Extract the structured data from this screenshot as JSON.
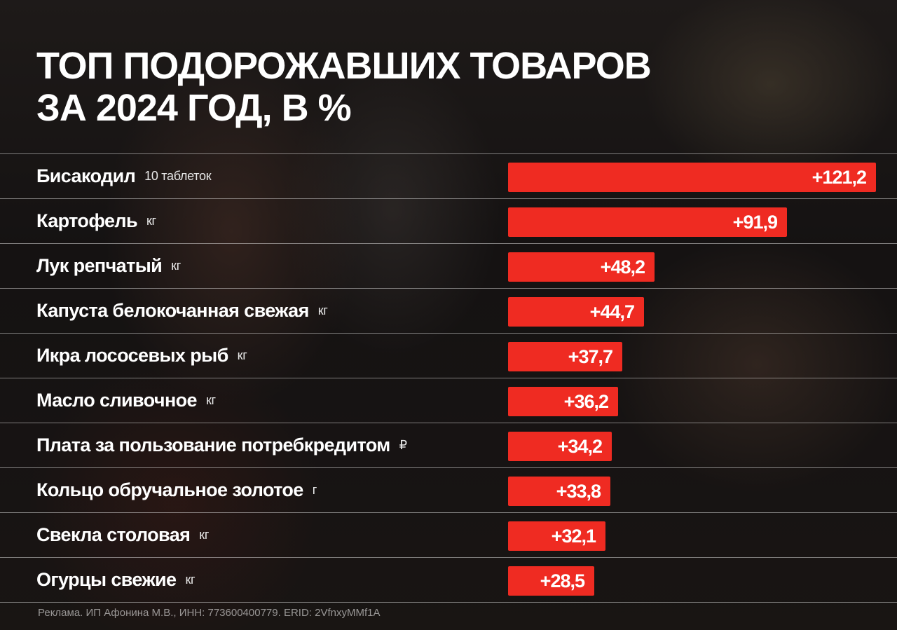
{
  "title": {
    "line1": "ТОП ПОДОРОЖАВШИХ ТОВАРОВ",
    "line2": "ЗА 2024 ГОД, В %"
  },
  "footnote": "Реклама. ИП Афонина М.В., ИНН: 773600400779. ERID: 2VfnxyMMf1A",
  "colors": {
    "bar": "#ef2b22",
    "background": "#161414",
    "text": "#ffffff"
  },
  "chart_data": {
    "type": "bar",
    "orientation": "horizontal",
    "title": "ТОП ПОДОРОЖАВШИХ ТОВАРОВ ЗА 2024 ГОД, В %",
    "xmax": 121.2,
    "rows": [
      {
        "name": "Бисакодил",
        "unit": "10 таблеток",
        "value": 121.2,
        "label": "+121,2"
      },
      {
        "name": "Картофель",
        "unit": "кг",
        "value": 91.9,
        "label": "+91,9"
      },
      {
        "name": "Лук репчатый",
        "unit": "кг",
        "value": 48.2,
        "label": "+48,2"
      },
      {
        "name": "Капуста белокочанная свежая",
        "unit": "кг",
        "value": 44.7,
        "label": "+44,7"
      },
      {
        "name": "Икра лососевых рыб",
        "unit": "кг",
        "value": 37.7,
        "label": "+37,7"
      },
      {
        "name": "Масло сливочное",
        "unit": "кг",
        "value": 36.2,
        "label": "+36,2"
      },
      {
        "name": "Плата за пользование потребкредитом",
        "unit": "₽",
        "value": 34.2,
        "label": "+34,2"
      },
      {
        "name": "Кольцо обручальное золотое",
        "unit": "г",
        "value": 33.8,
        "label": "+33,8"
      },
      {
        "name": "Свекла столовая",
        "unit": "кг",
        "value": 32.1,
        "label": "+32,1"
      },
      {
        "name": "Огурцы свежие",
        "unit": "кг",
        "value": 28.5,
        "label": "+28,5"
      }
    ]
  }
}
